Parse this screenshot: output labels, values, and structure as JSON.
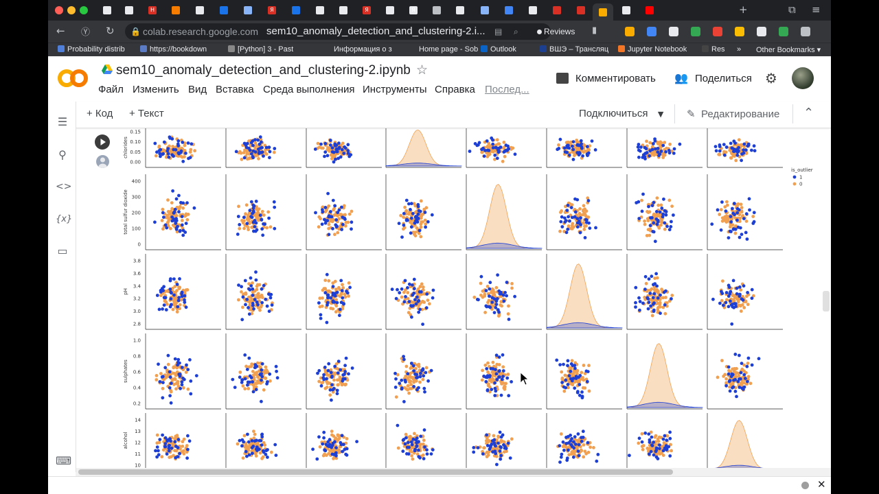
{
  "browser": {
    "url": "colab.research.google.com",
    "page_title": "sem10_anomaly_detection_and_clustering-2.i...",
    "reviews_label": "Reviews",
    "tab_letters": [
      "H",
      "Я",
      "Я",
      "Я"
    ],
    "bookmarks": [
      {
        "label": "Probability distrib",
        "color": "#4f7fd8"
      },
      {
        "label": "https://bookdown",
        "color": "#5b7cc4"
      },
      {
        "label": "[Python] 3 - Past",
        "color": "#888888"
      },
      {
        "label": "Информация о з",
        "color": "#35363a"
      },
      {
        "label": "Home page - Sob",
        "color": "#35363a"
      },
      {
        "label": "Outlook",
        "color": "#0a64c8"
      },
      {
        "label": "ВШЭ – Трансляц",
        "color": "#1d3f8f"
      },
      {
        "label": "Jupyter Notebook",
        "color": "#f37626"
      },
      {
        "label": "Res",
        "color": "#444444"
      }
    ],
    "more_bookmarks": "»",
    "other_bookmarks": "Other Bookmarks ▾"
  },
  "colab": {
    "logo_text": "CO",
    "notebook_title": "sem10_anomaly_detection_and_clustering-2.ipynb",
    "menu": [
      "Файл",
      "Изменить",
      "Вид",
      "Вставка",
      "Среда выполнения",
      "Инструменты",
      "Справка"
    ],
    "last_edit": "Послед...",
    "comment_label": "Комментировать",
    "share_label": "Поделиться",
    "add_code": "+ Код",
    "add_text": "+ Текст",
    "connect_label": "Подключиться",
    "edit_mode_label": "Редактирование"
  },
  "chart_data": {
    "type": "scatter",
    "kind": "pairplot",
    "hue": "is_outlier",
    "legend": {
      "title": "is_outlier",
      "entries": [
        "1",
        "0"
      ],
      "colors": {
        "1": "#1d3fd4",
        "0": "#f0a050"
      },
      "placement": "right"
    },
    "rows": [
      {
        "label": "chlorides",
        "ticks": [
          "0.15",
          "0.10",
          "0.05",
          "0.00"
        ],
        "ylim": [
          0.0,
          0.2
        ]
      },
      {
        "label": "total sulfur dioxide",
        "ticks": [
          "400",
          "300",
          "200",
          "100",
          "0"
        ],
        "ylim": [
          0,
          450
        ]
      },
      {
        "label": "pH",
        "ticks": [
          "3.8",
          "3.6",
          "3.4",
          "3.2",
          "3.0",
          "2.8"
        ],
        "ylim": [
          2.7,
          3.9
        ]
      },
      {
        "label": "sulphates",
        "ticks": [
          "1.0",
          "0.8",
          "0.6",
          "0.4",
          "0.2"
        ],
        "ylim": [
          0.2,
          1.05
        ]
      },
      {
        "label": "alcohol",
        "ticks": [
          "14",
          "13",
          "12",
          "11",
          "10"
        ],
        "ylim": [
          10,
          14.5
        ]
      }
    ],
    "n_columns": 8,
    "diagonal_kde_columns": [
      3,
      4,
      5,
      6,
      7
    ]
  }
}
